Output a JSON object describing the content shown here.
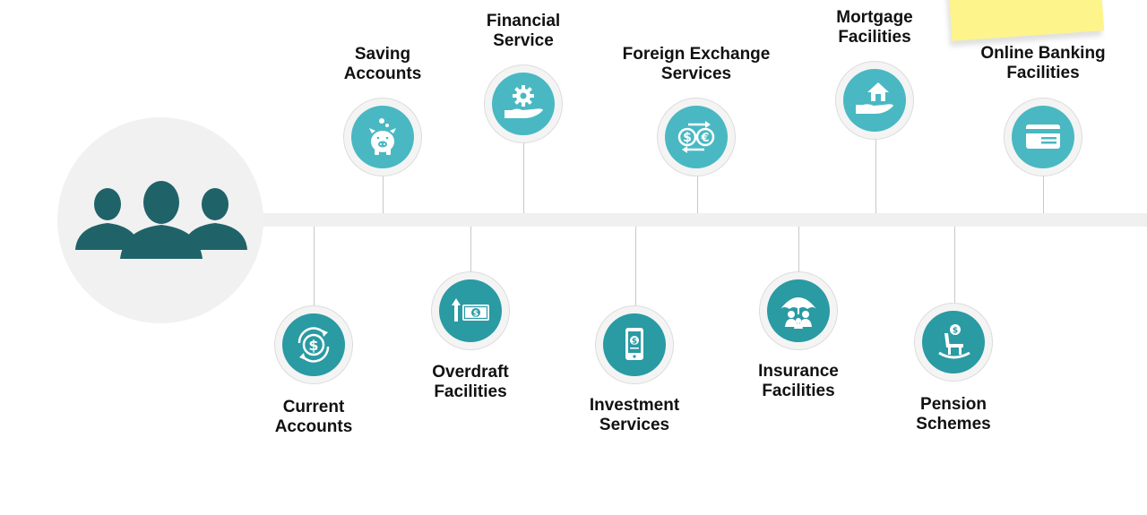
{
  "colors": {
    "teal_light": "#49b8c2",
    "teal_dark": "#2a9aa3",
    "hub_people": "#1f6369",
    "timeline": "#f0f0f0",
    "sticky_note": "#fdf58c"
  },
  "hub": {
    "icon": "people-group-icon"
  },
  "top_items": [
    {
      "line1": "Saving",
      "line2": "Accounts",
      "icon": "piggy-bank-icon"
    },
    {
      "line1": "Financial",
      "line2": "Service",
      "icon": "gear-hand-icon"
    },
    {
      "line1": "Foreign Exchange",
      "line2": "Services",
      "icon": "currency-exchange-icon"
    },
    {
      "line1": "Mortgage",
      "line2": "Facilities",
      "icon": "house-hand-icon"
    },
    {
      "line1": "Online Banking",
      "line2": "Facilities",
      "icon": "credit-card-icon"
    }
  ],
  "bottom_items": [
    {
      "line1": "Current",
      "line2": "Accounts",
      "icon": "dollar-cycle-icon"
    },
    {
      "line1": "Overdraft",
      "line2": "Facilities",
      "icon": "arrow-banknote-icon"
    },
    {
      "line1": "Investment",
      "line2": "Services",
      "icon": "tablet-dollar-icon"
    },
    {
      "line1": "Insurance",
      "line2": "Facilities",
      "icon": "umbrella-family-icon"
    },
    {
      "line1": "Pension",
      "line2": "Schemes",
      "icon": "rocking-chair-icon"
    }
  ]
}
